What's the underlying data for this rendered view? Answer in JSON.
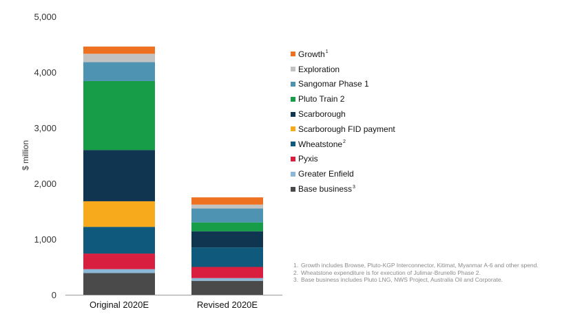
{
  "chart_data": {
    "type": "bar",
    "stacked": true,
    "title": "",
    "xlabel": "",
    "ylabel": "$ million",
    "ylim": [
      0,
      5000
    ],
    "yticks": [
      "0",
      "1,000",
      "2,000",
      "3,000",
      "4,000",
      "5,000"
    ],
    "ytick_values": [
      0,
      1000,
      2000,
      3000,
      4000,
      5000
    ],
    "categories": [
      "Original 2020E",
      "Revised 2020E"
    ],
    "series": [
      {
        "name": "Base business",
        "sup": "3",
        "color": "#4a4a4a",
        "values": [
          390,
          250
        ]
      },
      {
        "name": "Greater Enfield",
        "sup": "",
        "color": "#8ab8d6",
        "values": [
          70,
          50
        ]
      },
      {
        "name": "Pyxis",
        "sup": "",
        "color": "#d81f3f",
        "values": [
          280,
          200
        ]
      },
      {
        "name": "Wheatstone",
        "sup": "2",
        "color": "#0f5a7c",
        "values": [
          480,
          350
        ]
      },
      {
        "name": "Scarborough FID payment",
        "sup": "",
        "color": "#f6aa1c",
        "values": [
          460,
          0
        ]
      },
      {
        "name": "Scarborough",
        "sup": "",
        "color": "#0f3550",
        "values": [
          920,
          290
        ]
      },
      {
        "name": "Pluto Train 2",
        "sup": "",
        "color": "#179c48",
        "values": [
          1240,
          160
        ]
      },
      {
        "name": "Sangomar Phase 1",
        "sup": "",
        "color": "#4f93b3",
        "values": [
          340,
          250
        ]
      },
      {
        "name": "Exploration",
        "sup": "",
        "color": "#c2c2c2",
        "values": [
          150,
          70
        ]
      },
      {
        "name": "Growth",
        "sup": "1",
        "color": "#ee7122",
        "values": [
          130,
          130
        ]
      }
    ],
    "legend_order": [
      "Growth",
      "Exploration",
      "Sangomar Phase 1",
      "Pluto Train 2",
      "Scarborough",
      "Scarborough FID payment",
      "Wheatstone",
      "Pyxis",
      "Greater Enfield",
      "Base business"
    ],
    "legend_position": "right",
    "grid": false,
    "footnotes": [
      {
        "num": "1.",
        "text": "Growth includes Browse, Pluto-KGP Interconnector, Kitimat, Myanmar A-6 and other spend."
      },
      {
        "num": "2.",
        "text": "Wheatstone expenditure is for execution of Julimar-Brunello Phase 2."
      },
      {
        "num": "3.",
        "text": "Base business includes Pluto LNG, NWS Project, Australia Oil and Corporate."
      }
    ]
  }
}
